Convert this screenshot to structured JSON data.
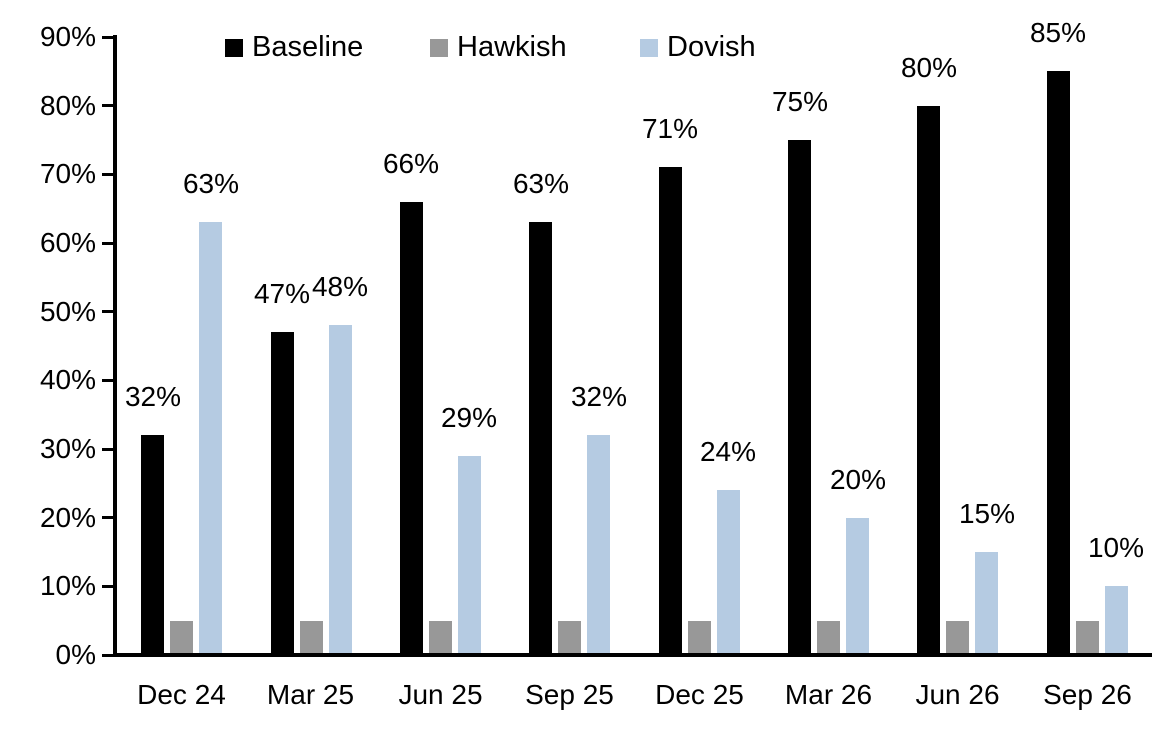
{
  "chart_data": {
    "type": "bar",
    "title": "",
    "categories": [
      "Dec 24",
      "Mar 25",
      "Jun 25",
      "Sep 25",
      "Dec 25",
      "Mar 26",
      "Jun 26",
      "Sep 26"
    ],
    "series": [
      {
        "name": "Baseline",
        "color": "#000000",
        "values": [
          32,
          47,
          66,
          63,
          71,
          75,
          80,
          85
        ],
        "data_labels": [
          "32%",
          "47%",
          "66%",
          "63%",
          "71%",
          "75%",
          "80%",
          "85%"
        ]
      },
      {
        "name": "Hawkish",
        "color": "#989898",
        "values": [
          5,
          5,
          5,
          5,
          5,
          5,
          5,
          5
        ],
        "data_labels": null
      },
      {
        "name": "Dovish",
        "color": "#B5CBE2",
        "values": [
          63,
          48,
          29,
          32,
          24,
          20,
          15,
          10
        ],
        "data_labels": [
          "63%",
          "48%",
          "29%",
          "32%",
          "24%",
          "20%",
          "15%",
          "10%"
        ]
      }
    ],
    "ylim": [
      0,
      90
    ],
    "y_tick_step": 10,
    "y_tick_labels": [
      "0%",
      "10%",
      "20%",
      "30%",
      "40%",
      "50%",
      "60%",
      "70%",
      "80%",
      "90%"
    ],
    "grid": false,
    "legend_position": "top",
    "axis_color": "#000000",
    "background_color": "#FFFFFF"
  }
}
